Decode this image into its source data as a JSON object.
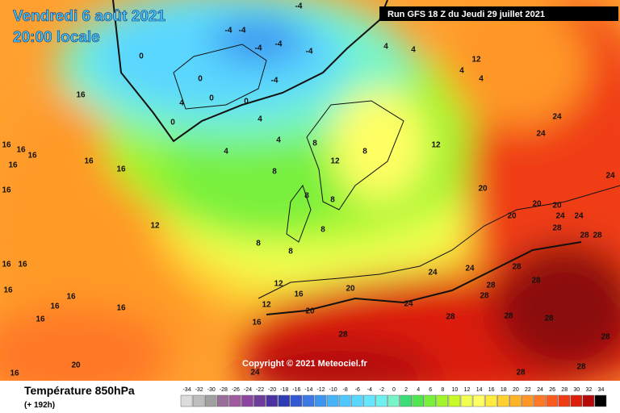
{
  "header": {
    "date": "Vendredi 6 août 2021",
    "time": "20:00 locale",
    "run": "Run GFS 18 Z du Jeudi 29 juillet 2021"
  },
  "copyright": "Copyright © 2021 Meteociel.fr",
  "footer": {
    "title": "Température 850hPa",
    "lead": "(+ 192h)"
  },
  "legend": {
    "ticks": [
      -34,
      -32,
      -30,
      -28,
      -26,
      -24,
      -22,
      -20,
      -18,
      -16,
      -14,
      -12,
      -10,
      -8,
      -6,
      -4,
      -2,
      0,
      2,
      4,
      6,
      8,
      10,
      12,
      14,
      16,
      18,
      20,
      22,
      24,
      26,
      28,
      30,
      32,
      34
    ],
    "colors": [
      "#dcdcdc",
      "#bebebe",
      "#a0a0a0",
      "#9a6e9a",
      "#a05aa0",
      "#8c46a0",
      "#6e3c9a",
      "#4b32a0",
      "#2d3cb4",
      "#3258d2",
      "#3c78e6",
      "#3c96f0",
      "#46b4f8",
      "#50c8ff",
      "#5ad7ff",
      "#64e6ff",
      "#6ef0f0",
      "#78f5c8",
      "#3cdc78",
      "#50e650",
      "#78f03c",
      "#a0f52d",
      "#c8fa28",
      "#f0ff50",
      "#ffff64",
      "#ffeb3c",
      "#ffd232",
      "#ffb428",
      "#ff9628",
      "#ff7828",
      "#ff5a1e",
      "#f03c14",
      "#dc1e0a",
      "#b40a0a",
      "#000000"
    ]
  },
  "map_labels": [
    -4,
    -4,
    -4,
    -4,
    -4,
    -4,
    -4,
    0,
    0,
    0,
    0,
    0,
    4,
    4,
    4,
    4,
    4,
    4,
    4,
    4,
    8,
    8,
    8,
    8,
    8,
    8,
    8,
    8,
    12,
    12,
    12,
    12,
    12,
    12,
    16,
    16,
    16,
    16,
    16,
    16,
    16,
    16,
    16,
    16,
    16,
    16,
    16,
    16,
    16,
    16,
    16,
    16,
    20,
    20,
    20,
    20,
    20,
    20,
    20,
    24,
    24,
    24,
    24,
    24,
    24,
    24,
    24,
    24,
    28,
    28,
    28,
    28,
    28,
    28,
    28,
    28,
    28,
    28,
    28,
    28,
    28,
    28
  ]
}
